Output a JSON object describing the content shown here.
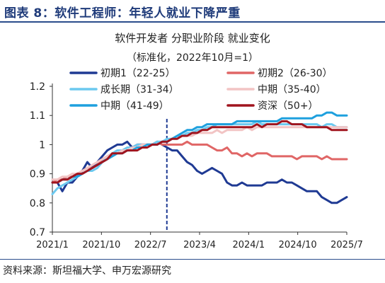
{
  "figure": {
    "title": "图表 8：软件工程师：年轻人就业下降严重",
    "source": "资料来源：斯坦福大学、申万宏源研究"
  },
  "chart_data": {
    "type": "line",
    "title": "软件开发者 分职业阶段 就业变化",
    "subtitle": "（标准化，2022年10月=1）",
    "xlabel": "",
    "ylabel": "",
    "ylim": [
      0.7,
      1.2
    ],
    "yticks": [
      0.7,
      0.8,
      0.9,
      1,
      1.1,
      1.2
    ],
    "x_ticks": [
      "2021/1",
      "2021/10",
      "2022/7",
      "2023/4",
      "2024/1",
      "2024/10",
      "2025/7"
    ],
    "x_start": "2021/1",
    "x_end": "2025/7",
    "reference_line": "2022/10",
    "legend_placement": "top",
    "grid": false,
    "series": [
      {
        "name": "初期1（22-25）",
        "color": "#1f3a93",
        "width": 3,
        "values": [
          0.87,
          0.87,
          0.84,
          0.87,
          0.87,
          0.89,
          0.91,
          0.94,
          0.92,
          0.94,
          0.96,
          0.98,
          0.99,
          1.0,
          1.0,
          1.01,
          0.99,
          1.0,
          1.0,
          1.0,
          1.0,
          1.01,
          1.0,
          0.99,
          0.98,
          0.98,
          0.96,
          0.94,
          0.93,
          0.91,
          0.9,
          0.91,
          0.92,
          0.91,
          0.9,
          0.87,
          0.86,
          0.86,
          0.87,
          0.86,
          0.86,
          0.86,
          0.86,
          0.87,
          0.87,
          0.87,
          0.88,
          0.87,
          0.87,
          0.86,
          0.85,
          0.84,
          0.84,
          0.84,
          0.82,
          0.81,
          0.8,
          0.8,
          0.81,
          0.82
        ]
      },
      {
        "name": "初期2（26-30）",
        "color": "#e06666",
        "width": 3,
        "values": [
          0.87,
          0.88,
          0.88,
          0.89,
          0.89,
          0.9,
          0.91,
          0.92,
          0.92,
          0.93,
          0.95,
          0.96,
          0.97,
          0.97,
          0.98,
          0.99,
          0.99,
          1.0,
          1.0,
          1.0,
          1.0,
          1.01,
          1.0,
          1.0,
          1.0,
          1.0,
          1.0,
          1.01,
          1.0,
          1.0,
          1.0,
          1.0,
          0.99,
          0.98,
          0.98,
          0.99,
          0.97,
          0.97,
          0.96,
          0.97,
          0.96,
          0.97,
          0.97,
          0.97,
          0.96,
          0.96,
          0.96,
          0.96,
          0.96,
          0.95,
          0.96,
          0.96,
          0.96,
          0.96,
          0.95,
          0.96,
          0.95,
          0.95,
          0.95,
          0.95
        ]
      },
      {
        "name": "成长期（31-34）",
        "color": "#6cc9ef",
        "width": 3,
        "values": [
          0.83,
          0.85,
          0.86,
          0.87,
          0.88,
          0.89,
          0.9,
          0.91,
          0.91,
          0.92,
          0.94,
          0.96,
          0.97,
          0.98,
          0.98,
          0.99,
          0.99,
          1.0,
          1.0,
          1.0,
          1.0,
          1.01,
          1.01,
          1.02,
          1.02,
          1.03,
          1.03,
          1.04,
          1.04,
          1.05,
          1.05,
          1.06,
          1.06,
          1.07,
          1.07,
          1.07,
          1.07,
          1.07,
          1.07,
          1.07,
          1.07,
          1.08,
          1.07,
          1.07,
          1.07,
          1.07,
          1.07,
          1.07,
          1.07,
          1.07,
          1.07,
          1.07,
          1.07,
          1.07,
          1.06,
          1.07,
          1.07,
          1.06,
          1.06,
          1.06
        ]
      },
      {
        "name": "中期（35-40）",
        "color": "#f2c4c4",
        "width": 3,
        "values": [
          0.88,
          0.88,
          0.89,
          0.89,
          0.9,
          0.9,
          0.91,
          0.92,
          0.93,
          0.94,
          0.95,
          0.96,
          0.97,
          0.97,
          0.98,
          0.98,
          0.99,
          0.99,
          1.0,
          1.0,
          1.0,
          1.0,
          1.01,
          1.01,
          1.02,
          1.02,
          1.03,
          1.03,
          1.03,
          1.04,
          1.04,
          1.04,
          1.04,
          1.05,
          1.04,
          1.05,
          1.05,
          1.05,
          1.05,
          1.06,
          1.05,
          1.06,
          1.06,
          1.06,
          1.06,
          1.06,
          1.06,
          1.06,
          1.06,
          1.06,
          1.06,
          1.06,
          1.06,
          1.06,
          1.06,
          1.06,
          1.06,
          1.06,
          1.06,
          1.06
        ]
      },
      {
        "name": "中期（41-49）",
        "color": "#1ea0de",
        "width": 3,
        "values": [
          0.87,
          0.87,
          0.88,
          0.88,
          0.89,
          0.89,
          0.9,
          0.91,
          0.92,
          0.93,
          0.94,
          0.95,
          0.96,
          0.97,
          0.97,
          0.98,
          0.98,
          0.99,
          0.99,
          1.0,
          1.0,
          1.0,
          1.01,
          1.01,
          1.02,
          1.03,
          1.04,
          1.05,
          1.05,
          1.06,
          1.06,
          1.07,
          1.07,
          1.07,
          1.07,
          1.07,
          1.07,
          1.08,
          1.08,
          1.08,
          1.08,
          1.08,
          1.08,
          1.08,
          1.08,
          1.08,
          1.09,
          1.09,
          1.09,
          1.09,
          1.09,
          1.09,
          1.09,
          1.1,
          1.1,
          1.11,
          1.11,
          1.1,
          1.1,
          1.1
        ]
      },
      {
        "name": "资深（50+）",
        "color": "#a0141e",
        "width": 3,
        "values": [
          0.87,
          0.87,
          0.88,
          0.88,
          0.89,
          0.9,
          0.9,
          0.91,
          0.92,
          0.93,
          0.94,
          0.95,
          0.97,
          0.97,
          0.97,
          0.98,
          0.98,
          0.98,
          0.99,
          0.99,
          1.0,
          1.0,
          1.01,
          1.01,
          1.02,
          1.02,
          1.03,
          1.03,
          1.04,
          1.04,
          1.05,
          1.05,
          1.06,
          1.06,
          1.06,
          1.06,
          1.06,
          1.06,
          1.06,
          1.06,
          1.06,
          1.07,
          1.06,
          1.07,
          1.07,
          1.07,
          1.08,
          1.08,
          1.07,
          1.07,
          1.07,
          1.06,
          1.06,
          1.06,
          1.06,
          1.06,
          1.05,
          1.05,
          1.05,
          1.05
        ]
      }
    ]
  }
}
